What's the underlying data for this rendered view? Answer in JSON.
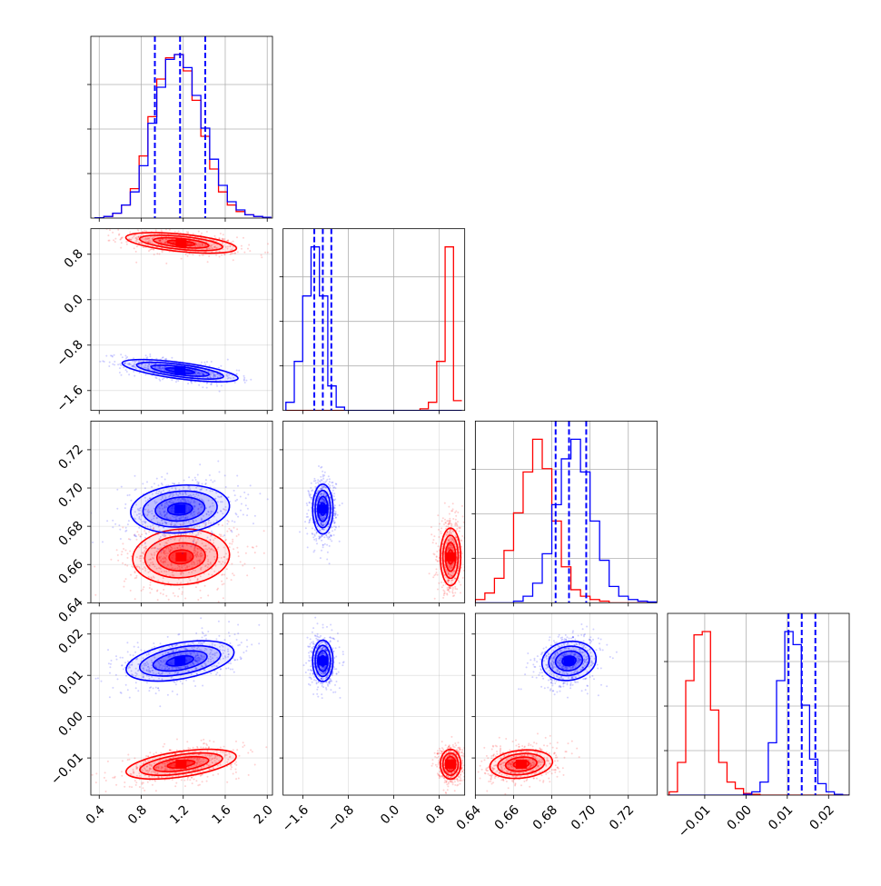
{
  "colors": {
    "series_a": "#ff0000",
    "series_b": "#0000ff",
    "grid": "#b0b0b0",
    "axis": "#000000"
  },
  "chart_data": {
    "type": "corner",
    "grid": true,
    "parameters": [
      {
        "range": [
          0.32,
          2.05
        ],
        "ticks": [
          0.4,
          0.8,
          1.2,
          1.6,
          2.0
        ],
        "tick_labels": [
          "0.4",
          "0.8",
          "1.2",
          "1.6",
          "2.0"
        ]
      },
      {
        "range": [
          -1.95,
          1.25
        ],
        "ticks": [
          -1.6,
          -0.8,
          0.0,
          0.8
        ],
        "tick_labels": [
          "−1.6",
          "−0.8",
          "0.0",
          "0.8"
        ]
      },
      {
        "range": [
          0.64,
          0.735
        ],
        "ticks": [
          0.64,
          0.66,
          0.68,
          0.7,
          0.72
        ],
        "tick_labels": [
          "0.64",
          "0.66",
          "0.68",
          "0.70",
          "0.72"
        ]
      },
      {
        "range": [
          -0.019,
          0.025
        ],
        "ticks": [
          -0.01,
          0.0,
          0.01,
          0.02
        ],
        "tick_labels": [
          "−0.01",
          "0.00",
          "0.01",
          "0.02"
        ]
      }
    ],
    "series": [
      {
        "color": "#ff0000",
        "mean": [
          1.18,
          1.0,
          0.664,
          -0.0115
        ],
        "sd": [
          0.22,
          0.09,
          0.0075,
          0.0018
        ],
        "cov": {
          "0-1": -0.45,
          "0-2": 0.1,
          "0-3": 0.45,
          "1-2": 0.0,
          "1-3": 0.0,
          "2-3": 0.2
        },
        "quantiles": [],
        "hist": [
          {
            "bins": [
              0.36,
              2.04
            ],
            "values": [
              0.002,
              0.01,
              0.03,
              0.08,
              0.18,
              0.38,
              0.62,
              0.85,
              0.98,
              1.0,
              0.9,
              0.72,
              0.5,
              0.3,
              0.16,
              0.08,
              0.04,
              0.02,
              0.01,
              0.005
            ]
          },
          {
            "bins": [
              -1.9,
              1.2
            ],
            "values": [
              0,
              0,
              0,
              0,
              0,
              0,
              0,
              0,
              0,
              0,
              0,
              0,
              0,
              0,
              0,
              0,
              0.01,
              0.05,
              0.3,
              1.0,
              0.06
            ]
          },
          {
            "bins": [
              0.64,
              0.735
            ],
            "values": [
              0.02,
              0.06,
              0.15,
              0.32,
              0.55,
              0.8,
              1.0,
              0.82,
              0.5,
              0.22,
              0.08,
              0.04,
              0.02,
              0.01,
              0,
              0,
              0,
              0,
              0
            ]
          },
          {
            "bins": [
              -0.0186,
              0.0254
            ],
            "values": [
              0.02,
              0.2,
              0.7,
              0.98,
              1.0,
              0.52,
              0.2,
              0.08,
              0.04,
              0.01,
              0.005,
              0,
              0,
              0,
              0,
              0,
              0,
              0,
              0,
              0,
              0,
              0
            ]
          }
        ]
      },
      {
        "color": "#0000ff",
        "mean": [
          1.17,
          -1.25,
          0.689,
          0.0135
        ],
        "sd": [
          0.22,
          0.09,
          0.0065,
          0.0025
        ],
        "cov": {
          "0-1": -0.6,
          "0-2": 0.15,
          "0-3": 0.4,
          "1-2": 0.0,
          "1-3": 0.0,
          "2-3": 0.2
        },
        "quantiles": [
          [
            0.93,
            1.17,
            1.41
          ],
          [
            -1.4,
            -1.25,
            -1.1
          ],
          [
            0.682,
            0.689,
            0.698
          ],
          [
            0.0103,
            0.0135,
            0.0168
          ]
        ],
        "hist": [
          {
            "bins": [
              0.36,
              2.04
            ],
            "values": [
              0.002,
              0.01,
              0.03,
              0.08,
              0.16,
              0.32,
              0.58,
              0.8,
              0.97,
              1.0,
              0.92,
              0.75,
              0.55,
              0.36,
              0.2,
              0.1,
              0.05,
              0.02,
              0.01,
              0.005
            ]
          },
          {
            "bins": [
              -1.9,
              1.2
            ],
            "values": [
              0.05,
              0.3,
              0.7,
              1.0,
              0.7,
              0.15,
              0.02,
              0,
              0,
              0,
              0,
              0,
              0,
              0,
              0,
              0,
              0,
              0,
              0,
              0,
              0
            ]
          },
          {
            "bins": [
              0.64,
              0.735
            ],
            "values": [
              0,
              0,
              0,
              0,
              0.01,
              0.04,
              0.12,
              0.3,
              0.6,
              0.88,
              1.0,
              0.8,
              0.5,
              0.26,
              0.1,
              0.04,
              0.02,
              0.01,
              0.005
            ]
          },
          {
            "bins": [
              -0.0186,
              0.0254
            ],
            "values": [
              0,
              0,
              0,
              0,
              0,
              0,
              0,
              0,
              0,
              0.005,
              0.02,
              0.08,
              0.32,
              0.7,
              1.0,
              0.92,
              0.55,
              0.22,
              0.07,
              0.02,
              0.005,
              0
            ]
          }
        ]
      }
    ]
  }
}
